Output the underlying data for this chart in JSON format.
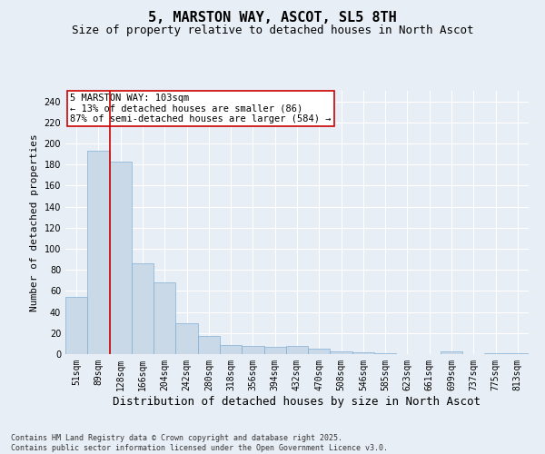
{
  "title": "5, MARSTON WAY, ASCOT, SL5 8TH",
  "subtitle": "Size of property relative to detached houses in North Ascot",
  "xlabel": "Distribution of detached houses by size in North Ascot",
  "ylabel": "Number of detached properties",
  "categories": [
    "51sqm",
    "89sqm",
    "128sqm",
    "166sqm",
    "204sqm",
    "242sqm",
    "280sqm",
    "318sqm",
    "356sqm",
    "394sqm",
    "432sqm",
    "470sqm",
    "508sqm",
    "546sqm",
    "585sqm",
    "623sqm",
    "661sqm",
    "699sqm",
    "737sqm",
    "775sqm",
    "813sqm"
  ],
  "values": [
    54,
    193,
    183,
    86,
    68,
    29,
    17,
    9,
    8,
    7,
    8,
    5,
    3,
    2,
    1,
    0,
    0,
    3,
    0,
    1,
    1
  ],
  "bar_color": "#c9d9e8",
  "bar_edge_color": "#7fafd4",
  "vline_x_pos": 1.5,
  "vline_color": "#cc0000",
  "annotation_text": "5 MARSTON WAY: 103sqm\n← 13% of detached houses are smaller (86)\n87% of semi-detached houses are larger (584) →",
  "annotation_box_color": "#ffffff",
  "annotation_box_edge": "#cc0000",
  "ylim": [
    0,
    250
  ],
  "yticks": [
    0,
    20,
    40,
    60,
    80,
    100,
    120,
    140,
    160,
    180,
    200,
    220,
    240
  ],
  "background_color": "#e8eef5",
  "grid_color": "#ffffff",
  "footnote": "Contains HM Land Registry data © Crown copyright and database right 2025.\nContains public sector information licensed under the Open Government Licence v3.0.",
  "title_fontsize": 11,
  "subtitle_fontsize": 9,
  "xlabel_fontsize": 9,
  "ylabel_fontsize": 8,
  "tick_fontsize": 7,
  "annot_fontsize": 7.5,
  "footnote_fontsize": 6
}
